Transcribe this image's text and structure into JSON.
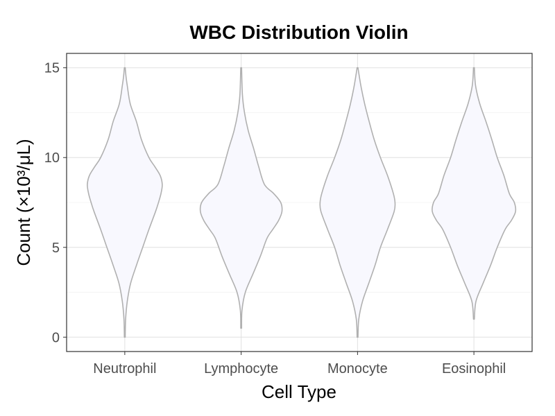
{
  "chart_data": {
    "type": "violin",
    "title": "WBC Distribution Violin",
    "xlabel": "Cell Type",
    "ylabel": "Count (×10³/μL)",
    "ylim": [
      -0.8,
      15.8
    ],
    "yticks": [
      0,
      5,
      10,
      15
    ],
    "ytick_labels": [
      "0",
      "5",
      "10",
      "15"
    ],
    "grid": true,
    "legend": "none",
    "fill_color": "#f8f8fe",
    "line_color": "#b0b0b0",
    "categories": [
      "Neutrophil",
      "Lymphocyte",
      "Monocyte",
      "Eosinophil"
    ],
    "series": [
      {
        "category": "Neutrophil",
        "profile": [
          [
            0.0,
            0.01
          ],
          [
            1.0,
            0.02
          ],
          [
            2.0,
            0.06
          ],
          [
            3.0,
            0.14
          ],
          [
            4.0,
            0.28
          ],
          [
            5.0,
            0.43
          ],
          [
            6.0,
            0.58
          ],
          [
            7.0,
            0.74
          ],
          [
            7.5,
            0.81
          ],
          [
            8.0,
            0.87
          ],
          [
            8.5,
            0.9
          ],
          [
            9.0,
            0.85
          ],
          [
            9.5,
            0.72
          ],
          [
            10.0,
            0.58
          ],
          [
            11.0,
            0.4
          ],
          [
            12.0,
            0.28
          ],
          [
            13.0,
            0.13
          ],
          [
            14.0,
            0.06
          ],
          [
            14.5,
            0.03
          ],
          [
            15.0,
            0.01
          ]
        ]
      },
      {
        "category": "Lymphocyte",
        "profile": [
          [
            0.5,
            0.01
          ],
          [
            1.5,
            0.02
          ],
          [
            2.5,
            0.1
          ],
          [
            3.5,
            0.28
          ],
          [
            4.5,
            0.46
          ],
          [
            5.5,
            0.62
          ],
          [
            6.0,
            0.76
          ],
          [
            6.5,
            0.9
          ],
          [
            7.0,
            0.98
          ],
          [
            7.5,
            0.95
          ],
          [
            8.0,
            0.78
          ],
          [
            8.5,
            0.56
          ],
          [
            9.5,
            0.42
          ],
          [
            10.5,
            0.3
          ],
          [
            11.5,
            0.17
          ],
          [
            12.5,
            0.08
          ],
          [
            13.5,
            0.03
          ],
          [
            15.0,
            0.01
          ]
        ]
      },
      {
        "category": "Monocyte",
        "profile": [
          [
            0.0,
            0.01
          ],
          [
            1.0,
            0.03
          ],
          [
            2.0,
            0.12
          ],
          [
            3.0,
            0.27
          ],
          [
            4.0,
            0.42
          ],
          [
            5.0,
            0.55
          ],
          [
            6.0,
            0.72
          ],
          [
            7.0,
            0.88
          ],
          [
            7.5,
            0.9
          ],
          [
            8.0,
            0.86
          ],
          [
            9.0,
            0.72
          ],
          [
            10.0,
            0.55
          ],
          [
            11.0,
            0.4
          ],
          [
            12.0,
            0.28
          ],
          [
            13.0,
            0.17
          ],
          [
            14.0,
            0.08
          ],
          [
            15.0,
            0.01
          ]
        ]
      },
      {
        "category": "Eosinophil",
        "profile": [
          [
            1.0,
            0.01
          ],
          [
            2.0,
            0.05
          ],
          [
            3.0,
            0.22
          ],
          [
            4.0,
            0.4
          ],
          [
            5.0,
            0.56
          ],
          [
            6.0,
            0.75
          ],
          [
            6.5,
            0.9
          ],
          [
            7.0,
            1.0
          ],
          [
            7.5,
            0.97
          ],
          [
            8.0,
            0.85
          ],
          [
            9.0,
            0.72
          ],
          [
            10.0,
            0.56
          ],
          [
            11.0,
            0.43
          ],
          [
            12.0,
            0.29
          ],
          [
            13.0,
            0.14
          ],
          [
            14.0,
            0.04
          ],
          [
            15.0,
            0.01
          ]
        ]
      }
    ]
  }
}
